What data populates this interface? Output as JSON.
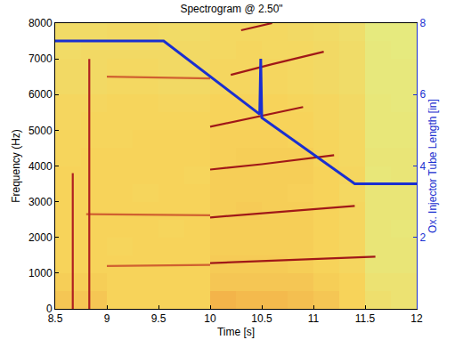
{
  "chart_data": {
    "type": "heatmap",
    "title": "Spectrogram @ 2.50\"",
    "x_label": "Time [s]",
    "y_label": "Frequency (Hz)",
    "y2_label": "Ox. Injector Tube Length [in]",
    "xlim": [
      8.5,
      12
    ],
    "xticks": [
      8.5,
      9,
      9.5,
      10,
      10.5,
      11,
      11.5,
      12
    ],
    "ylim": [
      0,
      8000
    ],
    "yticks": [
      0,
      1000,
      2000,
      3000,
      4000,
      5000,
      6000,
      7000,
      8000
    ],
    "y2lim": [
      0,
      8
    ],
    "y2ticks": [
      2,
      4,
      6,
      8
    ],
    "grid": false,
    "heatmap": {
      "x": [
        8.625,
        8.875,
        9.125,
        9.375,
        9.625,
        9.875,
        10.125,
        10.375,
        10.625,
        10.875,
        11.125,
        11.375,
        11.625,
        11.875
      ],
      "y": [
        250,
        750,
        1250,
        1750,
        2250,
        2750,
        3250,
        3750,
        4250,
        4750,
        5250,
        5750,
        6250,
        6750,
        7250,
        7750
      ],
      "zlim": [
        0,
        1
      ],
      "z": [
        [
          0.55,
          0.55,
          0.5,
          0.5,
          0.5,
          0.5,
          0.62,
          0.6,
          0.6,
          0.58,
          0.55,
          0.5,
          0.42,
          0.4
        ],
        [
          0.52,
          0.52,
          0.5,
          0.5,
          0.5,
          0.5,
          0.55,
          0.55,
          0.55,
          0.55,
          0.52,
          0.5,
          0.4,
          0.4
        ],
        [
          0.5,
          0.5,
          0.5,
          0.5,
          0.5,
          0.5,
          0.53,
          0.53,
          0.53,
          0.52,
          0.5,
          0.48,
          0.38,
          0.38
        ],
        [
          0.5,
          0.5,
          0.49,
          0.5,
          0.5,
          0.5,
          0.52,
          0.52,
          0.52,
          0.52,
          0.5,
          0.48,
          0.38,
          0.38
        ],
        [
          0.5,
          0.5,
          0.5,
          0.5,
          0.49,
          0.5,
          0.52,
          0.52,
          0.52,
          0.52,
          0.5,
          0.48,
          0.38,
          0.37
        ],
        [
          0.5,
          0.5,
          0.5,
          0.5,
          0.5,
          0.5,
          0.52,
          0.53,
          0.52,
          0.52,
          0.5,
          0.48,
          0.38,
          0.38
        ],
        [
          0.5,
          0.5,
          0.5,
          0.49,
          0.5,
          0.5,
          0.52,
          0.52,
          0.52,
          0.51,
          0.5,
          0.47,
          0.38,
          0.38
        ],
        [
          0.5,
          0.5,
          0.5,
          0.5,
          0.5,
          0.49,
          0.52,
          0.52,
          0.52,
          0.52,
          0.5,
          0.48,
          0.37,
          0.38
        ],
        [
          0.49,
          0.5,
          0.5,
          0.5,
          0.5,
          0.5,
          0.51,
          0.52,
          0.52,
          0.52,
          0.49,
          0.47,
          0.38,
          0.38
        ],
        [
          0.49,
          0.49,
          0.49,
          0.5,
          0.5,
          0.5,
          0.51,
          0.51,
          0.51,
          0.5,
          0.49,
          0.47,
          0.37,
          0.37
        ],
        [
          0.48,
          0.49,
          0.49,
          0.49,
          0.49,
          0.49,
          0.5,
          0.5,
          0.5,
          0.5,
          0.48,
          0.46,
          0.37,
          0.37
        ],
        [
          0.48,
          0.48,
          0.49,
          0.49,
          0.48,
          0.48,
          0.5,
          0.5,
          0.5,
          0.49,
          0.48,
          0.46,
          0.37,
          0.36
        ],
        [
          0.46,
          0.46,
          0.47,
          0.47,
          0.46,
          0.46,
          0.48,
          0.48,
          0.48,
          0.47,
          0.46,
          0.44,
          0.36,
          0.36
        ],
        [
          0.46,
          0.46,
          0.47,
          0.47,
          0.46,
          0.46,
          0.48,
          0.48,
          0.48,
          0.47,
          0.46,
          0.44,
          0.36,
          0.36
        ],
        [
          0.45,
          0.46,
          0.46,
          0.46,
          0.46,
          0.46,
          0.47,
          0.48,
          0.47,
          0.47,
          0.46,
          0.44,
          0.36,
          0.35
        ],
        [
          0.45,
          0.45,
          0.46,
          0.46,
          0.45,
          0.45,
          0.47,
          0.47,
          0.47,
          0.46,
          0.45,
          0.43,
          0.35,
          0.35
        ]
      ]
    },
    "series": [
      {
        "type": "line",
        "color": "#d06030",
        "x": [
          9.0,
          10.0
        ],
        "values": [
          1200,
          1230
        ]
      },
      {
        "type": "line",
        "color": "#a01818",
        "x": [
          10.0,
          10.5,
          11.0,
          11.6
        ],
        "values": [
          1280,
          1340,
          1400,
          1460
        ]
      },
      {
        "type": "line",
        "color": "#d06030",
        "x": [
          8.8,
          10.0
        ],
        "values": [
          2650,
          2620
        ]
      },
      {
        "type": "line",
        "color": "#a01818",
        "x": [
          10.0,
          10.5,
          11.0,
          11.4
        ],
        "values": [
          2560,
          2680,
          2800,
          2880
        ]
      },
      {
        "type": "line",
        "color": "#a01818",
        "x": [
          10.0,
          10.5,
          11.2
        ],
        "values": [
          3900,
          4050,
          4300
        ]
      },
      {
        "type": "line",
        "color": "#a01818",
        "x": [
          10.0,
          10.5,
          10.9
        ],
        "values": [
          5100,
          5400,
          5650
        ]
      },
      {
        "type": "line",
        "color": "#d06030",
        "x": [
          9.0,
          10.0
        ],
        "values": [
          6500,
          6450
        ]
      },
      {
        "type": "line",
        "color": "#a01818",
        "x": [
          10.2,
          10.6,
          11.1
        ],
        "values": [
          6550,
          6850,
          7200
        ]
      },
      {
        "type": "line",
        "color": "#a01818",
        "x": [
          10.3,
          10.6
        ],
        "values": [
          7800,
          8000
        ]
      },
      {
        "type": "line",
        "color": "#b02020",
        "x": [
          8.67,
          8.67
        ],
        "values": [
          0,
          3800
        ]
      },
      {
        "type": "line",
        "color": "#b02020",
        "x": [
          8.83,
          8.83
        ],
        "values": [
          0,
          7000
        ]
      },
      {
        "type": "line",
        "color": "#1a2fd0",
        "axis": "y2",
        "x": [
          8.5,
          9.55,
          10.48,
          10.49,
          10.5,
          11.4,
          12
        ],
        "values": [
          7.5,
          7.5,
          5.45,
          7.0,
          5.35,
          3.5,
          3.5
        ]
      }
    ]
  }
}
